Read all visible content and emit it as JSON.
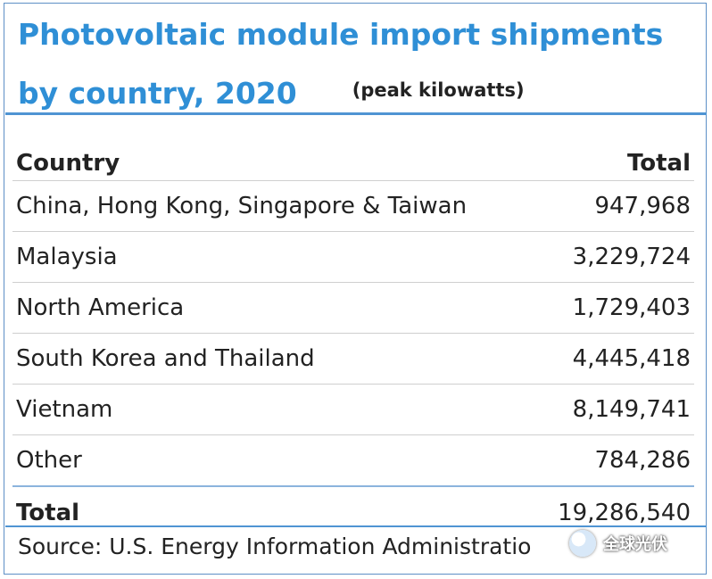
{
  "chart_data": {
    "type": "table",
    "title_line1": "Photovoltaic module import shipments",
    "title_line2": "by country, 2020",
    "unit": "(peak kilowatts)",
    "columns": [
      "Country",
      "Total"
    ],
    "rows": [
      {
        "country": "China, Hong Kong, Singapore & Taiwan",
        "total": "947,968"
      },
      {
        "country": "Malaysia",
        "total": "3,229,724"
      },
      {
        "country": "North America",
        "total": "1,729,403"
      },
      {
        "country": "South Korea and Thailand",
        "total": "4,445,418"
      },
      {
        "country": "Vietnam",
        "total": "8,149,741"
      },
      {
        "country": "Other",
        "total": "784,286"
      }
    ],
    "total_row": {
      "label": "Total",
      "total": "19,286,540"
    },
    "source": "Source: U.S. Energy Information Administratio",
    "watermark": "全球光伏"
  }
}
